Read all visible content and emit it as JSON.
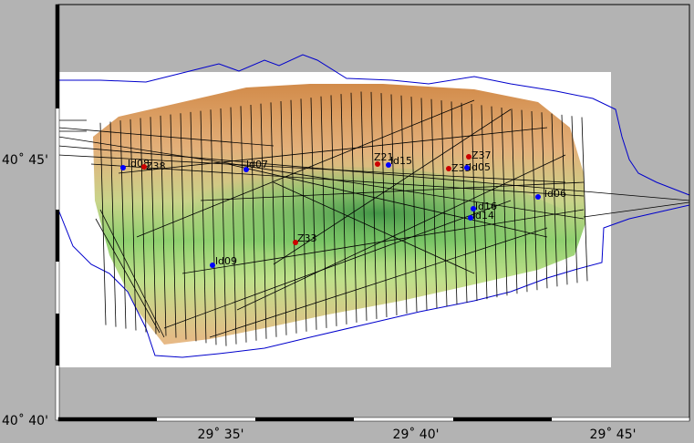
{
  "map": {
    "background_color": "#b3b3b3",
    "survey_background_color": "#ffffff",
    "coastline_color": "#0000cc",
    "track_color": "#000000",
    "bathymetry_colors": [
      "#d28b4a",
      "#e3b07a",
      "#c9d48a",
      "#8fcf6f",
      "#3fa84a",
      "#2d8a3c"
    ],
    "frame": "checkered-black-white"
  },
  "axes": {
    "x_ticks": [
      "29˚ 35'",
      "29˚ 40'",
      "29˚ 45'"
    ],
    "y_ticks": [
      "40˚ 45'",
      "40˚ 40'"
    ]
  },
  "stations": [
    {
      "name": "ld08",
      "color": "#0000ff"
    },
    {
      "name": "Z38",
      "color": "#cc0000"
    },
    {
      "name": "ld07",
      "color": "#0000ff"
    },
    {
      "name": "Z21",
      "color": "#cc0000"
    },
    {
      "name": "ld15",
      "color": "#0000ff"
    },
    {
      "name": "Z37",
      "color": "#cc0000"
    },
    {
      "name": "Z35",
      "color": "#cc0000"
    },
    {
      "name": "ld05",
      "color": "#0000ff"
    },
    {
      "name": "ld06",
      "color": "#0000ff"
    },
    {
      "name": "ld16",
      "color": "#0000ff"
    },
    {
      "name": "ld14",
      "color": "#0000ff"
    },
    {
      "name": "Z33",
      "color": "#cc0000"
    },
    {
      "name": "ld09",
      "color": "#0000ff"
    }
  ]
}
